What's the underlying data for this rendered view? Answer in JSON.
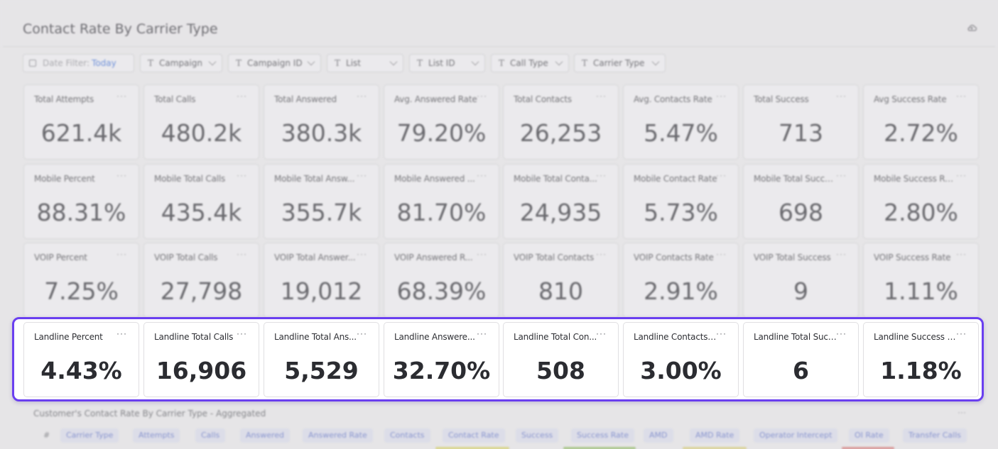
{
  "page": {
    "title": "Contact Rate By Carrier Type",
    "header_icon": "cloud-icon"
  },
  "filters": {
    "date_label": "Date Filter:",
    "date_value": "Today",
    "items": [
      "Campaign",
      "Campaign ID",
      "List",
      "List ID",
      "Call Type",
      "Carrier Type"
    ]
  },
  "rows": [
    {
      "group": "total",
      "cards": [
        {
          "label": "Total Attempts",
          "value": "621.4k"
        },
        {
          "label": "Total Calls",
          "value": "480.2k"
        },
        {
          "label": "Total Answered",
          "value": "380.3k"
        },
        {
          "label": "Avg. Answered Rate",
          "value": "79.20%"
        },
        {
          "label": "Total Contacts",
          "value": "26,253"
        },
        {
          "label": "Avg. Contacts Rate",
          "value": "5.47%"
        },
        {
          "label": "Total Success",
          "value": "713"
        },
        {
          "label": "Avg Success Rate",
          "value": "2.72%"
        }
      ]
    },
    {
      "group": "mobile",
      "cards": [
        {
          "label": "Mobile Percent",
          "value": "88.31%"
        },
        {
          "label": "Mobile Total Calls",
          "value": "435.4k"
        },
        {
          "label": "Mobile Total Answ...",
          "value": "355.7k"
        },
        {
          "label": "Mobile Answered ...",
          "value": "81.70%"
        },
        {
          "label": "Mobile Total Conta...",
          "value": "24,935"
        },
        {
          "label": "Mobile Contact Rate",
          "value": "5.73%"
        },
        {
          "label": "Mobile Total Success",
          "value": "698"
        },
        {
          "label": "Mobile Success Rate",
          "value": "2.80%"
        }
      ]
    },
    {
      "group": "voip",
      "cards": [
        {
          "label": "VOIP Percent",
          "value": "7.25%"
        },
        {
          "label": "VOIP Total Calls",
          "value": "27,798"
        },
        {
          "label": "VOIP Total Answer...",
          "value": "19,012"
        },
        {
          "label": "VOIP Answered R...",
          "value": "68.39%"
        },
        {
          "label": "VOIP Total Contacts",
          "value": "810"
        },
        {
          "label": "VOIP Contacts Rate",
          "value": "2.91%"
        },
        {
          "label": "VOIP Total Success",
          "value": "9"
        },
        {
          "label": "VOIP Success Rate",
          "value": "1.11%"
        }
      ]
    },
    {
      "group": "landline",
      "cards": [
        {
          "label": "Landline Percent",
          "value": "4.43%"
        },
        {
          "label": "Landline Total Calls",
          "value": "16,906"
        },
        {
          "label": "Landline Total Ans...",
          "value": "5,529"
        },
        {
          "label": "Landline Answere...",
          "value": "32.70%"
        },
        {
          "label": "Landline Total Con...",
          "value": "508"
        },
        {
          "label": "Landline Contacts ...",
          "value": "3.00%"
        },
        {
          "label": "Landline Total Succ...",
          "value": "6"
        },
        {
          "label": "Landline Success R...",
          "value": "1.18%"
        }
      ]
    }
  ],
  "card_menu": "···",
  "table": {
    "title": "Customer's Contact Rate By Carrier Type - Aggregated",
    "menu": "···",
    "columns": [
      "#",
      "Carrier Type",
      "Attempts",
      "Calls",
      "Answered",
      "Answered Rate",
      "Contacts",
      "Contact Rate",
      "Success",
      "Success Rate",
      "AMD",
      "AMD Rate",
      "Operator Intercept",
      "OI Rate",
      "Transfer Calls"
    ]
  },
  "colors": {
    "highlight": "#6a3ff0",
    "accent_link": "#4d7ad6",
    "background": "#e6e5e7"
  }
}
